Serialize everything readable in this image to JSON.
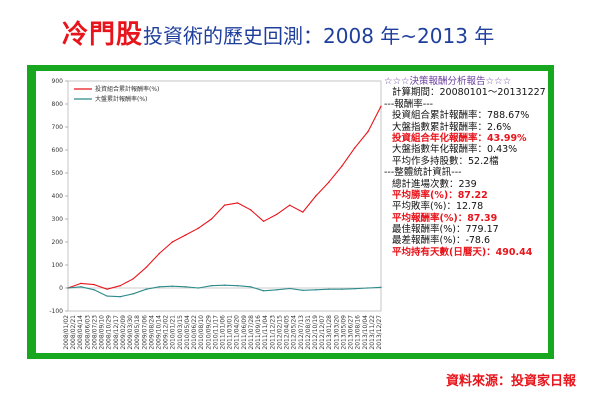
{
  "header": {
    "title_highlight": "冷門股",
    "title_rest": "投資術的歷史回測：2008 年~2013 年"
  },
  "report_lines": [
    {
      "text": "☆☆☆決策報酬分析報告☆☆☆",
      "style": "header"
    },
    {
      "text": "計算期間：20080101～20131227",
      "style": "indent"
    },
    {
      "text": "---報酬率---",
      "style": "normal"
    },
    {
      "text": "投資組合累計報酬率：788.67%",
      "style": "indent"
    },
    {
      "text": "大盤指數累計報酬率：2.6%",
      "style": "indent"
    },
    {
      "text": "投資組合年化報酬率：43.99%",
      "style": "hl indent"
    },
    {
      "text": "大盤指數年化報酬率：0.43%",
      "style": "indent"
    },
    {
      "text": "平均作多持股數：52.2檔",
      "style": "indent"
    },
    {
      "text": "---整體統計資訊---",
      "style": "normal"
    },
    {
      "text": "總計進場次數：239",
      "style": "indent"
    },
    {
      "text": "平均勝率(%)：87.22",
      "style": "hl indent"
    },
    {
      "text": "平均敗率(%)：12.78",
      "style": "indent"
    },
    {
      "text": "平均報酬率(%)：87.39",
      "style": "hl indent"
    },
    {
      "text": "最佳報酬率(%)：779.17",
      "style": "indent"
    },
    {
      "text": "最差報酬率(%)：-78.6",
      "style": "indent"
    },
    {
      "text": "平均持有天數(日曆天)：490.44",
      "style": "hl indent"
    }
  ],
  "source": "資料來源：投資家日報",
  "colors": {
    "frame": "#18a820",
    "title_red": "#e8141b",
    "title_blue": "#1f3f9c",
    "portfolio_line": "#e8141b",
    "index_line": "#2e8b8b"
  },
  "chart_data": {
    "type": "line",
    "title": "",
    "xlabel": "",
    "ylabel": "",
    "ylim": [
      -100,
      900
    ],
    "yticks": [
      -100,
      0,
      100,
      200,
      300,
      400,
      500,
      600,
      700,
      800,
      900
    ],
    "grid": false,
    "legend": "top-left",
    "x": [
      "2008/01/02",
      "2008/04/01",
      "2008/07/01",
      "2008/10/01",
      "2009/01/02",
      "2009/04/01",
      "2009/07/01",
      "2009/10/01",
      "2010/01/04",
      "2010/04/01",
      "2010/07/01",
      "2010/10/01",
      "2011/01/03",
      "2011/04/01",
      "2011/07/01",
      "2011/10/03",
      "2012/01/02",
      "2012/04/02",
      "2012/07/02",
      "2012/10/01",
      "2013/01/02",
      "2013/04/01",
      "2013/07/01",
      "2013/10/01",
      "2013/12/27"
    ],
    "xtick_labels": [
      "2008/01/02",
      "2008/02/21",
      "2008/04/14",
      "2008/06/03",
      "2008/07/23",
      "2008/09/10",
      "2008/10/29",
      "2008/12/17",
      "2009/02/09",
      "2009/03/30",
      "2009/05/18",
      "2009/07/06",
      "2009/08/24",
      "2009/10/14",
      "2009/12/02",
      "2010/01/21",
      "2010/03/15",
      "2010/05/04",
      "2010/06/22",
      "2010/08/10",
      "2010/09/29",
      "2010/11/17",
      "2011/01/06",
      "2011/03/01",
      "2011/04/20",
      "2011/06/09",
      "2011/07/28",
      "2011/09/16",
      "2011/11/04",
      "2011/12/23",
      "2012/02/15",
      "2012/04/05",
      "2012/05/24",
      "2012/07/13",
      "2012/08/31",
      "2012/10/19",
      "2012/12/07",
      "2013/01/28",
      "2013/03/20",
      "2013/05/09",
      "2013/06/27",
      "2013/08/16",
      "2013/10/04",
      "2013/11/22",
      "2013/12/27"
    ],
    "series": [
      {
        "name": "投資組合累計報酬率(%)",
        "values": [
          0,
          20,
          15,
          -5,
          10,
          40,
          90,
          150,
          200,
          230,
          260,
          300,
          360,
          370,
          340,
          290,
          320,
          360,
          330,
          400,
          460,
          530,
          610,
          680,
          790
        ]
      },
      {
        "name": "大盤累計報酬率(%)",
        "values": [
          0,
          5,
          -8,
          -35,
          -38,
          -25,
          -5,
          5,
          8,
          5,
          0,
          10,
          12,
          10,
          5,
          -12,
          -8,
          -2,
          -10,
          -8,
          -5,
          -5,
          -3,
          0,
          3
        ]
      }
    ]
  }
}
